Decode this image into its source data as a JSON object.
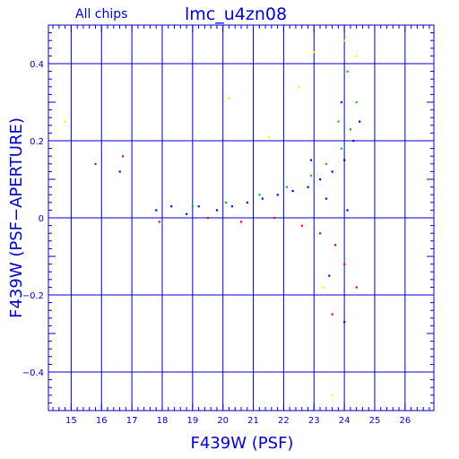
{
  "chart_data": {
    "type": "scatter",
    "title": "lmc_u4zn08",
    "subtitle": "All chips",
    "xlabel": "F439W (PSF)",
    "ylabel": "F439W (PSF−APERTURE)",
    "xlim": [
      14.25,
      26.95
    ],
    "ylim": [
      -0.5,
      0.5
    ],
    "x_major_ticks": [
      15,
      16,
      17,
      18,
      19,
      20,
      21,
      22,
      23,
      24,
      25,
      26
    ],
    "x_tick_labels": [
      "15",
      "16",
      "17",
      "18",
      "19",
      "20",
      "21",
      "22",
      "23",
      "24",
      "25",
      "26"
    ],
    "y_major_ticks": [
      -0.4,
      -0.2,
      0,
      0.2,
      0.4
    ],
    "y_tick_labels": [
      "−0.4",
      "−0.2",
      "0",
      "0.2",
      "0.4"
    ],
    "grid": true,
    "legend": "none",
    "series": [
      {
        "color": "#0000ff",
        "points": [
          [
            17.8,
            0.02
          ],
          [
            18.3,
            0.03
          ],
          [
            18.8,
            0.01
          ],
          [
            19.2,
            0.03
          ],
          [
            19.8,
            0.02
          ],
          [
            20.3,
            0.03
          ],
          [
            20.8,
            0.04
          ],
          [
            21.3,
            0.05
          ],
          [
            21.8,
            0.06
          ],
          [
            22.3,
            0.07
          ],
          [
            22.8,
            0.08
          ],
          [
            23.2,
            0.1
          ],
          [
            23.6,
            0.12
          ],
          [
            24.0,
            0.15
          ],
          [
            24.3,
            0.2
          ],
          [
            24.5,
            0.25
          ],
          [
            23.9,
            0.3
          ],
          [
            22.9,
            0.15
          ],
          [
            23.4,
            0.05
          ],
          [
            24.1,
            0.02
          ],
          [
            16.6,
            0.12
          ],
          [
            23.5,
            -0.15
          ],
          [
            24.0,
            -0.27
          ]
        ]
      },
      {
        "color": "#00cc00",
        "points": [
          [
            19.0,
            0.03
          ],
          [
            20.1,
            0.04
          ],
          [
            21.2,
            0.06
          ],
          [
            22.1,
            0.08
          ],
          [
            22.9,
            0.11
          ],
          [
            23.4,
            0.14
          ],
          [
            23.9,
            0.18
          ],
          [
            24.2,
            0.23
          ],
          [
            24.4,
            0.3
          ],
          [
            24.1,
            0.38
          ],
          [
            23.8,
            0.25
          ]
        ]
      },
      {
        "color": "#ff0000",
        "points": [
          [
            15.8,
            0.14
          ],
          [
            16.7,
            0.16
          ],
          [
            17.9,
            -0.01
          ],
          [
            19.5,
            0.0
          ],
          [
            20.6,
            -0.01
          ],
          [
            21.7,
            0.0
          ],
          [
            22.6,
            -0.02
          ],
          [
            23.2,
            -0.04
          ],
          [
            23.7,
            -0.07
          ],
          [
            24.0,
            -0.12
          ],
          [
            24.4,
            -0.18
          ],
          [
            23.6,
            -0.25
          ]
        ]
      },
      {
        "color": "#ffee00",
        "points": [
          [
            14.8,
            0.25
          ],
          [
            20.2,
            0.31
          ],
          [
            21.5,
            0.21
          ],
          [
            22.5,
            0.34
          ],
          [
            23.0,
            0.43
          ],
          [
            24.0,
            0.46
          ],
          [
            23.6,
            -0.46
          ],
          [
            23.3,
            -0.18
          ],
          [
            24.4,
            0.42
          ]
        ]
      }
    ]
  }
}
